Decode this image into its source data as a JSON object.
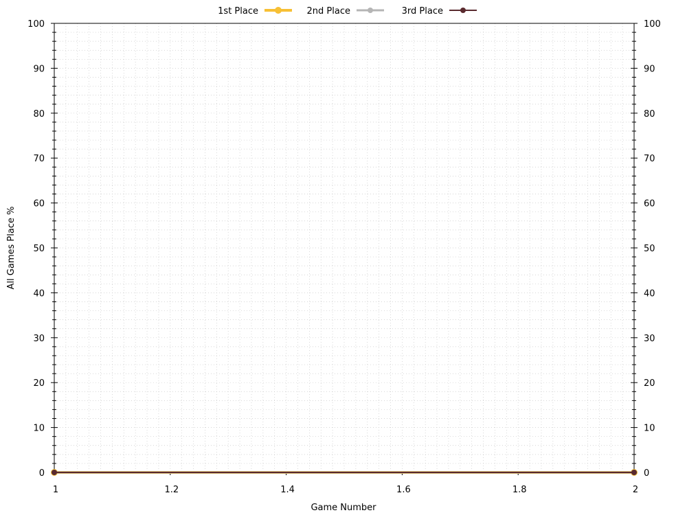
{
  "chart_data": {
    "type": "line",
    "xlabel": "Game Number",
    "ylabel": "All Games Place %",
    "xlim": [
      1,
      2
    ],
    "ylim": [
      0,
      100
    ],
    "x_ticks": [
      "1",
      "1.2",
      "1.4",
      "1.6",
      "1.8",
      "2"
    ],
    "y_ticks": [
      "0",
      "10",
      "20",
      "30",
      "40",
      "50",
      "60",
      "70",
      "80",
      "90",
      "100"
    ],
    "right_axis_ticks": true,
    "grid": "dotted-minor",
    "legend_position": "top-center",
    "series": [
      {
        "name": "1st Place",
        "color": "#f7c035",
        "x": [
          1,
          2
        ],
        "y": [
          0,
          0
        ]
      },
      {
        "name": "2nd Place",
        "color": "#b5b5b5",
        "x": [
          1,
          2
        ],
        "y": [
          0,
          0
        ]
      },
      {
        "name": "3rd Place",
        "color": "#5a2a2e",
        "x": [
          1,
          2
        ],
        "y": [
          0,
          0
        ]
      }
    ]
  }
}
